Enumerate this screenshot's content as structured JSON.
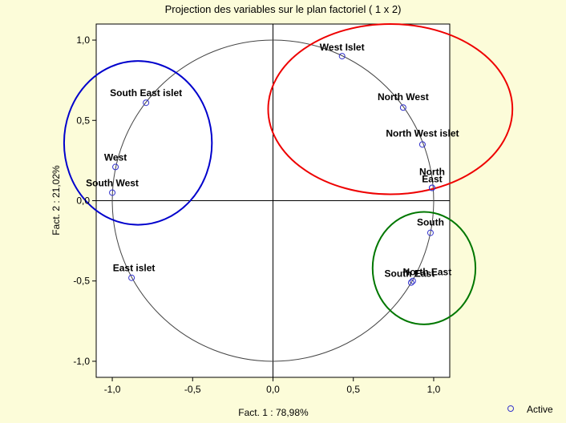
{
  "chart_data": {
    "type": "scatter",
    "title": "Projection des variables sur le plan factoriel (  1 x   2)",
    "xlabel": "Fact. 1  : 78,98%",
    "ylabel": "Fact. 2  : 21,02%",
    "xlim": [
      -1.1,
      1.1
    ],
    "ylim": [
      -1.1,
      1.1
    ],
    "x_ticks": [
      "-1,0",
      "-0,5",
      "0,0",
      "0,5",
      "1,0"
    ],
    "y_ticks": [
      "1,0",
      "0,5",
      "0,0",
      "-0,5",
      "-1,0"
    ],
    "x_tick_values": [
      -1.0,
      -0.5,
      0.0,
      0.5,
      1.0
    ],
    "y_tick_values": [
      1.0,
      0.5,
      0.0,
      -0.5,
      -1.0
    ],
    "unit_circle": true,
    "points": [
      {
        "label": "West Islet",
        "x": 0.43,
        "y": 0.9
      },
      {
        "label": "North West",
        "x": 0.81,
        "y": 0.58
      },
      {
        "label": "North West islet",
        "x": 0.93,
        "y": 0.35
      },
      {
        "label": "North",
        "x": 0.99,
        "y": 0.08
      },
      {
        "label": "East",
        "x": 0.99,
        "y": 0.08
      },
      {
        "label": "South East islet",
        "x": -0.79,
        "y": 0.61
      },
      {
        "label": "West",
        "x": -0.98,
        "y": 0.21
      },
      {
        "label": "South West",
        "x": -1.0,
        "y": 0.05
      },
      {
        "label": "East islet",
        "x": -0.88,
        "y": -0.48
      },
      {
        "label": "South",
        "x": 0.98,
        "y": -0.2
      },
      {
        "label": "South East",
        "x": 0.86,
        "y": -0.51
      },
      {
        "label": "North East",
        "x": 0.87,
        "y": -0.5
      }
    ],
    "groups": [
      {
        "color": "#0000cc",
        "cx": -0.84,
        "cy": 0.36,
        "rx": 0.46,
        "ry": 0.51
      },
      {
        "color": "#ee0000",
        "cx": 0.73,
        "cy": 0.57,
        "rx": 0.76,
        "ry": 0.53
      },
      {
        "color": "#007700",
        "cx": 0.94,
        "cy": -0.42,
        "rx": 0.32,
        "ry": 0.35
      }
    ],
    "legend": {
      "marker": "o",
      "label": "Active",
      "position": "bottom-right"
    },
    "point_color": "#3333cc"
  }
}
